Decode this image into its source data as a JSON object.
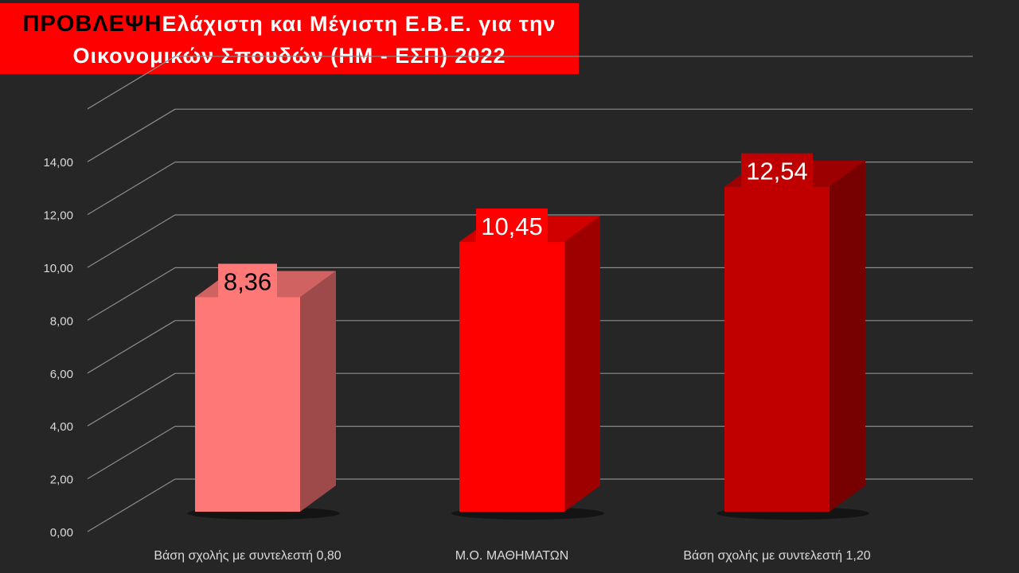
{
  "title": {
    "prefix": "ΠΡΟΒΛΕΨΗ",
    "line1": "Ελάχιστη και Μέγιστη Ε.Β.Ε. για την",
    "line2": "Οικονομικών Σπουδών (ΗΜ - ΕΣΠ) 2022"
  },
  "colors": {
    "background": "#262626",
    "title_bg": "#ff0000",
    "gridline": "#8c8c8c",
    "axis_text": "#d9d9d9"
  },
  "chart_data": {
    "type": "bar",
    "categories": [
      "Βάση σχολής με συντελεστή 0,80",
      "Μ.Ο. ΜΑΘΗΜΑΤΩΝ",
      "Βάση σχολής με συντελεστή 1,20"
    ],
    "values": [
      8.36,
      10.45,
      12.54
    ],
    "data_labels": [
      "8,36",
      "10,45",
      "12,54"
    ],
    "bar_colors": [
      "#ff7878",
      "#ff0000",
      "#c00000"
    ],
    "ylim": [
      0,
      16
    ],
    "yticks": [
      "0,00",
      "2,00",
      "4,00",
      "6,00",
      "8,00",
      "10,00",
      "12,00",
      "14,00"
    ],
    "grid": true,
    "style": "3d-column"
  }
}
